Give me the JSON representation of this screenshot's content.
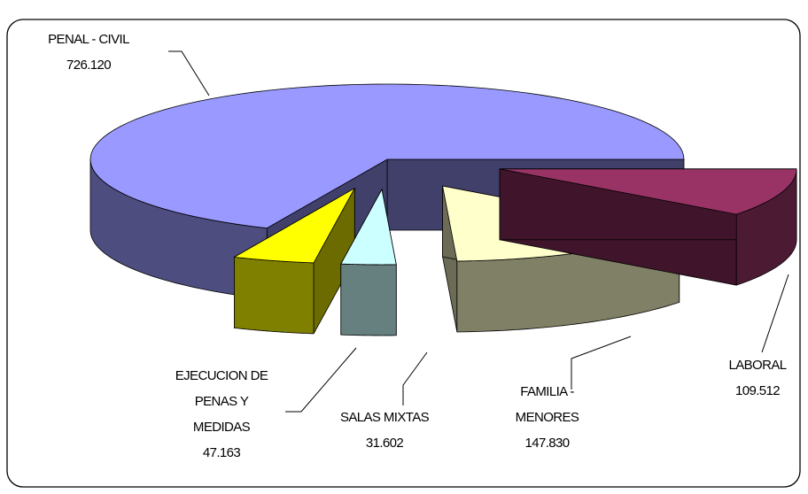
{
  "chart_data": {
    "type": "pie3d",
    "categories": [
      "PENAL - CIVIL",
      "EJECUCION DE PENAS Y MEDIDAS",
      "SALAS MIXTAS",
      "FAMILIA - MENORES",
      "LABORAL"
    ],
    "values": [
      726120,
      47163,
      31602,
      147830,
      109512
    ],
    "value_labels": [
      "726.120",
      "47.163",
      "31.602",
      "147.830",
      "109.512"
    ],
    "colors": [
      "#9999ff",
      "#ffff00",
      "#ccffff",
      "#ffffcc",
      "#993366"
    ]
  }
}
